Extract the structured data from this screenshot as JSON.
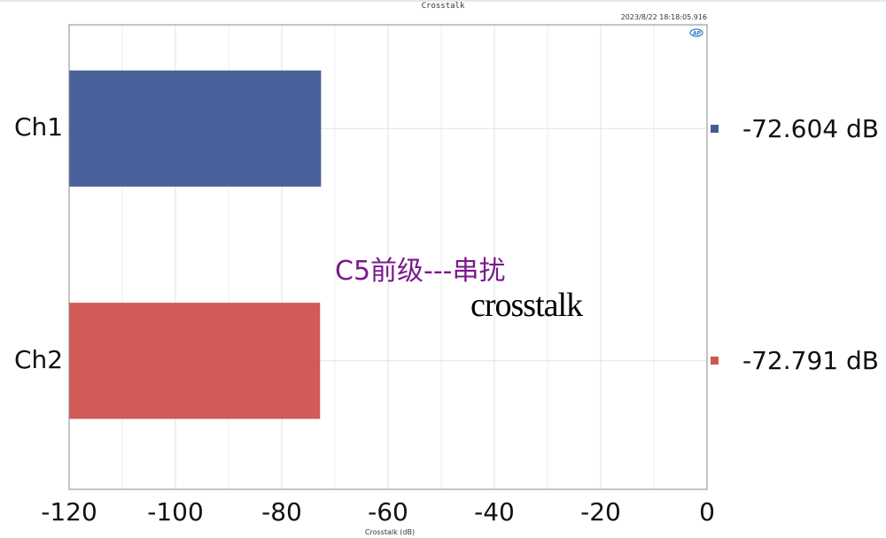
{
  "header": {
    "title": "Crosstalk",
    "timestamp": "2023/8/22 18:18:05.916",
    "logo_icon": "ap-logo-icon"
  },
  "overlay": {
    "chinese_text": "C5前级---串扰",
    "english_text": "crosstalk",
    "chinese_color": "#7a1a8c"
  },
  "chart_data": {
    "type": "bar",
    "orientation": "horizontal",
    "title": "Crosstalk",
    "xlabel": "Crosstalk (dB)",
    "ylabel": "",
    "categories": [
      "Ch1",
      "Ch2"
    ],
    "values": [
      -72.604,
      -72.791
    ],
    "colors": [
      "#435c98",
      "#d15552"
    ],
    "value_labels": [
      "-72.604 dB",
      "-72.791 dB"
    ],
    "xlim": [
      -120,
      0
    ],
    "x_ticks": [
      -120,
      -100,
      -80,
      -60,
      -40,
      -20,
      0
    ],
    "x_tick_labels": [
      "-120",
      "-100",
      "-80",
      "-60",
      "-40",
      "-20",
      "0"
    ],
    "grid": true,
    "legend_placement": "right"
  }
}
